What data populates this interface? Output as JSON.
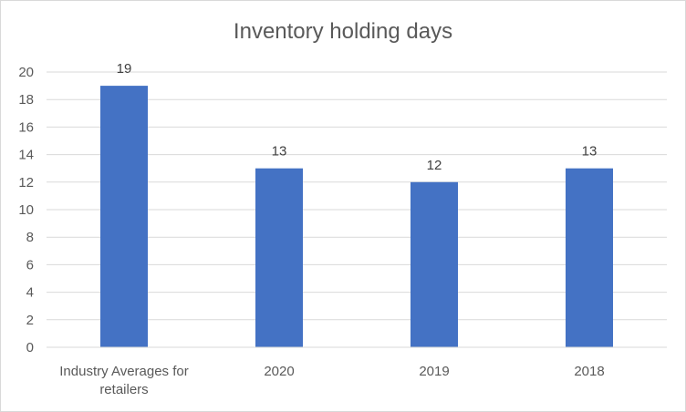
{
  "chart_data": {
    "type": "bar",
    "title": "Inventory holding days",
    "categories": [
      "Industry Averages for retailers",
      "2020",
      "2019",
      "2018"
    ],
    "category_lines": [
      [
        "Industry Averages for",
        "retailers"
      ],
      [
        "2020"
      ],
      [
        "2019"
      ],
      [
        "2018"
      ]
    ],
    "values": [
      19,
      13,
      12,
      13
    ],
    "data_labels": [
      "19",
      "13",
      "12",
      "13"
    ],
    "xlabel": "",
    "ylabel": "",
    "ylim": [
      0,
      20
    ],
    "yticks": [
      0,
      2,
      4,
      6,
      8,
      10,
      12,
      14,
      16,
      18,
      20
    ],
    "grid": true,
    "legend": "none",
    "colors": {
      "bar": "#4472c4",
      "grid": "#d9d9d9",
      "axis": "#d9d9d9",
      "text": "#595959"
    }
  }
}
